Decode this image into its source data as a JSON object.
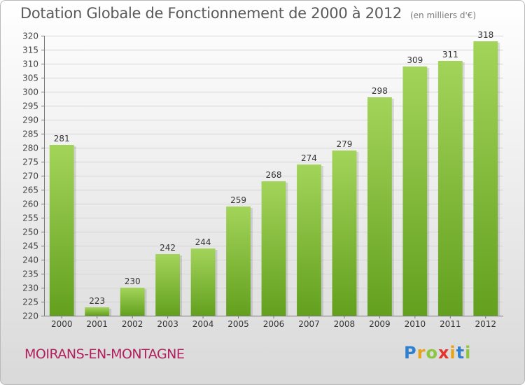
{
  "title": "Dotation Globale de Fonctionnement de 2000 à 2012",
  "subtitle": "(en milliers d'€)",
  "commune": "MOIRANS-EN-MONTAGNE",
  "logo": {
    "letters": [
      "P",
      "r",
      "o",
      "x",
      "i",
      "t",
      "i"
    ],
    "colors": [
      "#2f7fd1",
      "#e6a21a",
      "#8cc63f",
      "#e6332a",
      "#e6a21a",
      "#2f7fd1",
      "#8cc63f"
    ]
  },
  "colors": {
    "bar_light": "#a3d45a",
    "bar_dark": "#63a01e",
    "commune": "#b01f5e"
  },
  "chart_data": {
    "type": "bar",
    "categories": [
      "2000",
      "2001",
      "2002",
      "2003",
      "2004",
      "2005",
      "2006",
      "2007",
      "2008",
      "2009",
      "2010",
      "2011",
      "2012"
    ],
    "values": [
      281,
      223,
      230,
      242,
      244,
      259,
      268,
      274,
      279,
      298,
      309,
      311,
      318
    ],
    "ylim": [
      220,
      320
    ],
    "ytick_step": 5,
    "grid": true,
    "legend": "none"
  }
}
